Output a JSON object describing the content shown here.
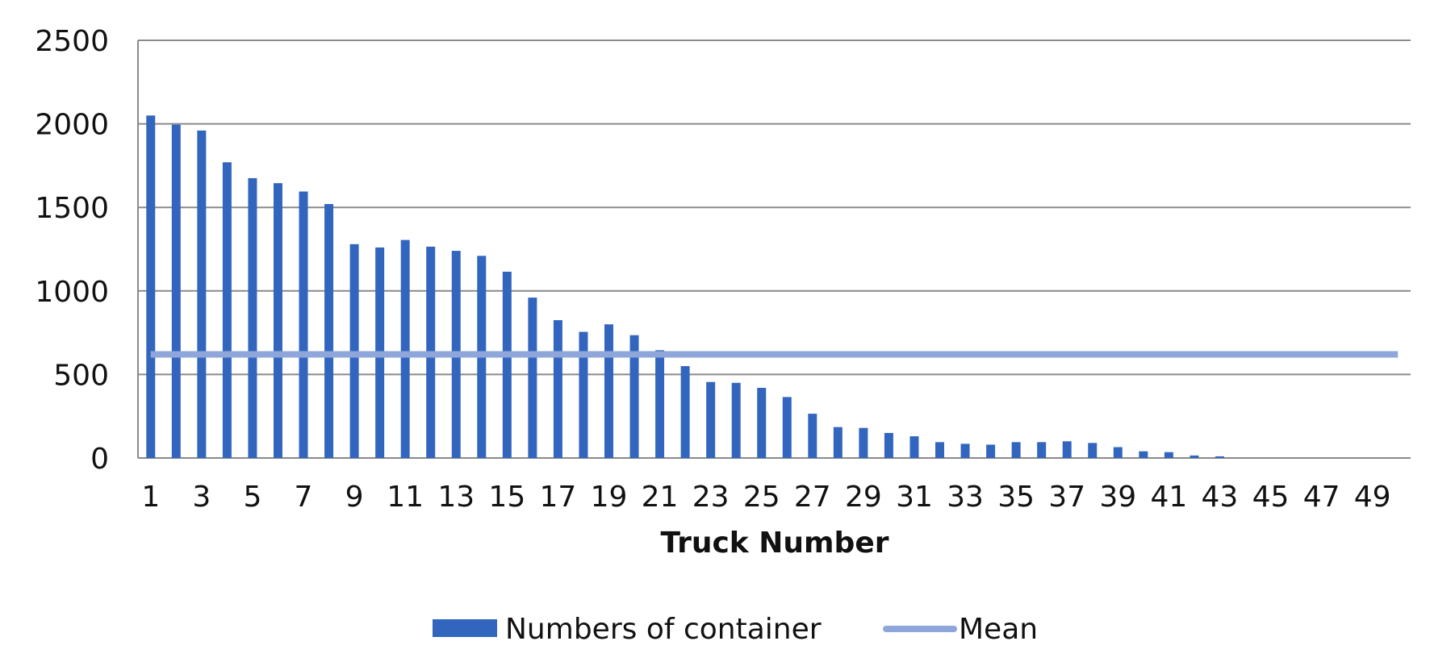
{
  "chart_data": {
    "type": "bar",
    "xlabel": "Truck Number",
    "ylabel": "",
    "ylim": [
      0,
      2500
    ],
    "yticks": [
      0,
      500,
      1000,
      1500,
      2000,
      2500
    ],
    "grid": "horizontal",
    "legend_position": "bottom",
    "x": [
      1,
      2,
      3,
      4,
      5,
      6,
      7,
      8,
      9,
      10,
      11,
      12,
      13,
      14,
      15,
      16,
      17,
      18,
      19,
      20,
      21,
      22,
      23,
      24,
      25,
      26,
      27,
      28,
      29,
      30,
      31,
      32,
      33,
      34,
      35,
      36,
      37,
      38,
      39,
      40,
      41,
      42,
      43,
      44,
      45,
      46,
      47,
      48,
      49,
      50
    ],
    "xtick_labels": [
      "1",
      "3",
      "5",
      "7",
      "9",
      "11",
      "13",
      "15",
      "17",
      "19",
      "21",
      "23",
      "25",
      "27",
      "29",
      "31",
      "33",
      "35",
      "37",
      "39",
      "41",
      "43",
      "45",
      "47",
      "49"
    ],
    "series": [
      {
        "name": "Numbers of container",
        "kind": "bar",
        "color": "#3266be",
        "values": [
          2050,
          1995,
          1960,
          1770,
          1675,
          1645,
          1595,
          1520,
          1280,
          1260,
          1305,
          1265,
          1240,
          1210,
          1115,
          960,
          825,
          755,
          800,
          735,
          645,
          550,
          455,
          450,
          420,
          365,
          265,
          185,
          180,
          150,
          130,
          95,
          85,
          80,
          95,
          95,
          100,
          90,
          65,
          40,
          35,
          15,
          10,
          0,
          0,
          0,
          0,
          0,
          0,
          0
        ]
      },
      {
        "name": "Mean",
        "kind": "line",
        "color": "#8ea6da",
        "value": 620
      }
    ]
  }
}
